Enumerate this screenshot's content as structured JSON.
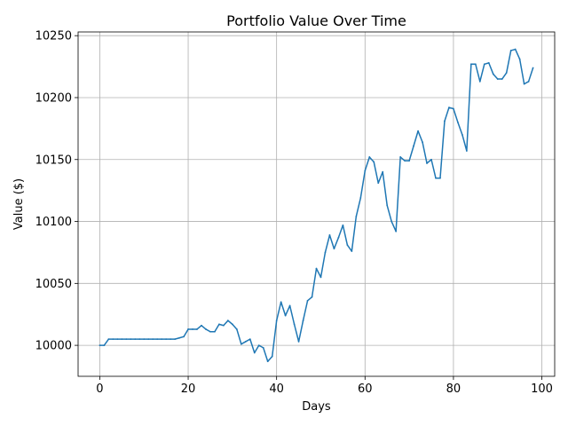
{
  "chart_data": {
    "type": "line",
    "title": "Portfolio Value Over Time",
    "xlabel": "Days",
    "ylabel": "Value ($)",
    "xlim": [
      -4.9,
      102.9
    ],
    "ylim": [
      9975,
      10253
    ],
    "xticks": [
      0,
      20,
      40,
      60,
      80,
      100
    ],
    "yticks": [
      10000,
      10050,
      10100,
      10150,
      10200,
      10250
    ],
    "grid": true,
    "line_color": "#1f77b4",
    "x": [
      0,
      1,
      2,
      3,
      4,
      5,
      6,
      7,
      8,
      9,
      10,
      11,
      12,
      13,
      14,
      15,
      16,
      17,
      18,
      19,
      20,
      21,
      22,
      23,
      24,
      25,
      26,
      27,
      28,
      29,
      30,
      31,
      32,
      33,
      34,
      35,
      36,
      37,
      38,
      39,
      40,
      41,
      42,
      43,
      44,
      45,
      46,
      47,
      48,
      49,
      50,
      51,
      52,
      53,
      54,
      55,
      56,
      57,
      58,
      59,
      60,
      61,
      62,
      63,
      64,
      65,
      66,
      67,
      68,
      69,
      70,
      71,
      72,
      73,
      74,
      75,
      76,
      77,
      78,
      79,
      80,
      81,
      82,
      83,
      84,
      85,
      86,
      87,
      88,
      89,
      90,
      91,
      92,
      93,
      94,
      95,
      96,
      97,
      98
    ],
    "y": [
      10000,
      10000,
      10005,
      10005,
      10005,
      10005,
      10005,
      10005,
      10005,
      10005,
      10005,
      10005,
      10005,
      10005,
      10005,
      10005,
      10005,
      10005,
      10006,
      10007,
      10013,
      10013,
      10013,
      10016,
      10013,
      10011,
      10011,
      10017,
      10016,
      10020,
      10017,
      10013,
      10001,
      10003,
      10005,
      9994,
      10000,
      9998,
      9987,
      9991,
      10020,
      10035,
      10024,
      10032,
      10017,
      10003,
      10020,
      10036,
      10039,
      10062,
      10055,
      10075,
      10089,
      10078,
      10087,
      10097,
      10081,
      10076,
      10104,
      10119,
      10141,
      10152,
      10148,
      10131,
      10140,
      10113,
      10100,
      10092,
      10152,
      10149,
      10149,
      10161,
      10173,
      10164,
      10147,
      10150,
      10135,
      10135,
      10181,
      10192,
      10191,
      10180,
      10170,
      10157,
      10227,
      10227,
      10213,
      10227,
      10228,
      10219,
      10215,
      10215,
      10220,
      10238,
      10239,
      10231,
      10211,
      10213,
      10224
    ]
  }
}
